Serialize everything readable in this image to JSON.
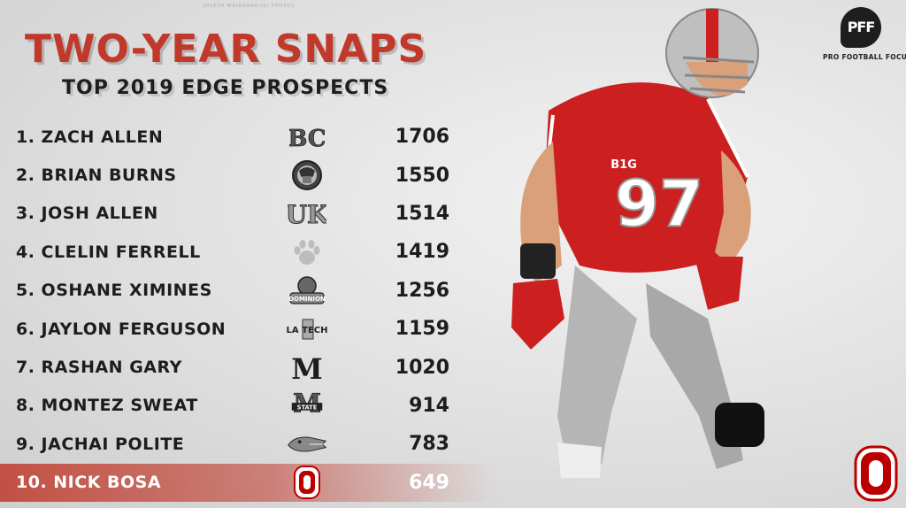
{
  "credit": "JOSEPH MAIORANA/ISI PHOTOS",
  "title": "TWO-YEAR SNAPS",
  "subtitle": "TOP 2019 EDGE PROSPECTS",
  "brand": {
    "mark": "PFF",
    "text": "PRO FOOTBALL FOCUS"
  },
  "player": {
    "jersey_number": "97",
    "conference_patch": "B1G"
  },
  "prospects": [
    {
      "label": "1. ZACH ALLEN",
      "school_logo": "boston-college",
      "logo_text": "BC",
      "snaps": "1706"
    },
    {
      "label": "2. BRIAN BURNS",
      "school_logo": "florida-state",
      "logo_text": "",
      "snaps": "1550"
    },
    {
      "label": "3. JOSH ALLEN",
      "school_logo": "kentucky",
      "logo_text": "UK",
      "snaps": "1514"
    },
    {
      "label": "4. CLELIN FERRELL",
      "school_logo": "clemson",
      "logo_text": "",
      "snaps": "1419"
    },
    {
      "label": "5. OSHANE XIMINES",
      "school_logo": "old-dominion",
      "logo_text": "DOMINION",
      "snaps": "1256"
    },
    {
      "label": "6. JAYLON FERGUSON",
      "school_logo": "louisiana-tech",
      "logo_text": "LA TECH",
      "snaps": "1159"
    },
    {
      "label": "7. RASHAN GARY",
      "school_logo": "michigan",
      "logo_text": "M",
      "snaps": "1020"
    },
    {
      "label": "8. MONTEZ SWEAT",
      "school_logo": "mississippi-state",
      "logo_text": "STATE",
      "snaps": "914"
    },
    {
      "label": "9. JACHAI POLITE",
      "school_logo": "florida",
      "logo_text": "",
      "snaps": "783"
    },
    {
      "label": "10. NICK BOSA",
      "school_logo": "ohio-state",
      "logo_text": "",
      "snaps": "649"
    }
  ],
  "colors": {
    "accent": "#c0392b",
    "scarlet": "#bb0000",
    "text": "#1d1d1d"
  }
}
